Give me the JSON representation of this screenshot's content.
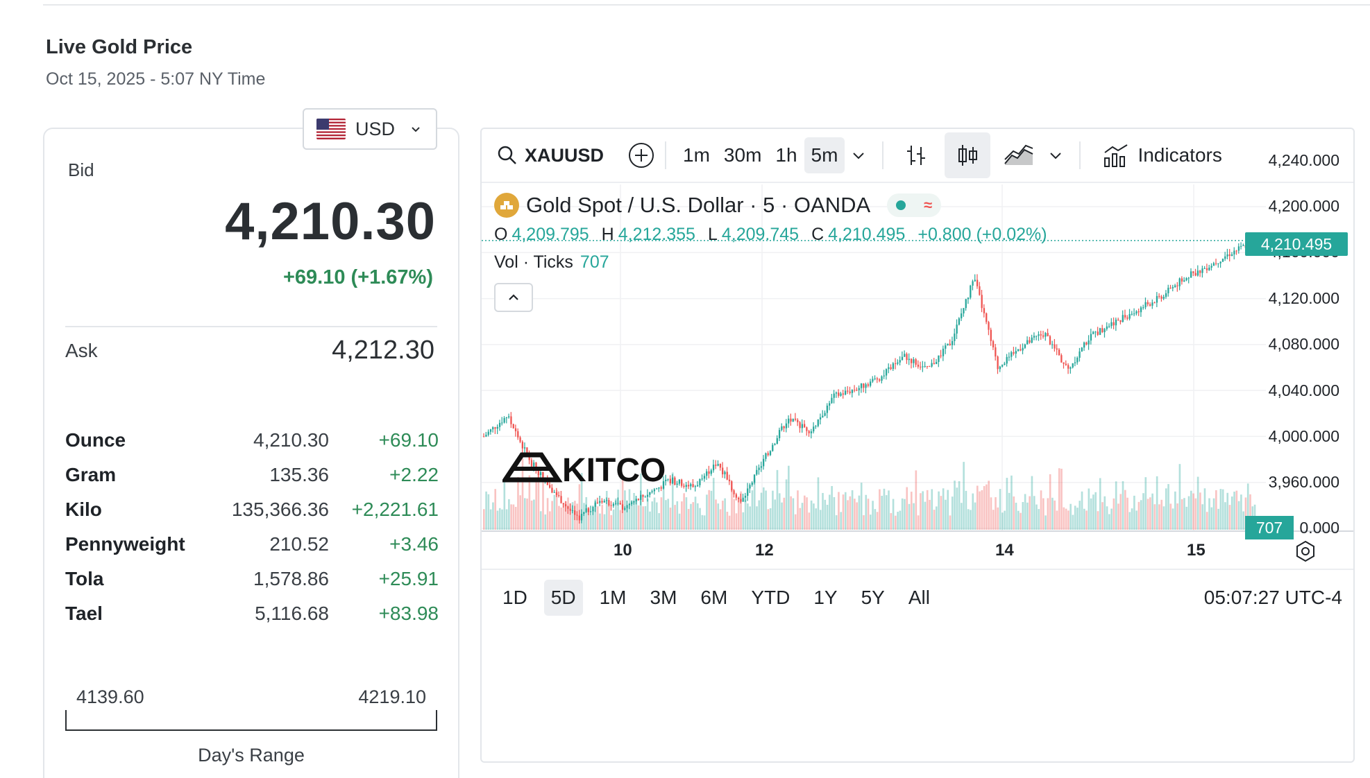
{
  "header": {
    "title": "Live Gold Price",
    "subtitle": "Oct 15, 2025 - 5:07 NY Time"
  },
  "currency": {
    "selected": "USD",
    "flag_icon": "us-flag-icon"
  },
  "quote": {
    "bid_label": "Bid",
    "bid": "4,210.30",
    "change": "+69.10 (+1.67%)",
    "ask_label": "Ask",
    "ask": "4,212.30",
    "up_color": "#2e8b57"
  },
  "units": [
    {
      "name": "Ounce",
      "value": "4,210.30",
      "change": "+69.10"
    },
    {
      "name": "Gram",
      "value": "135.36",
      "change": "+2.22"
    },
    {
      "name": "Kilo",
      "value": "135,366.36",
      "change": "+2,221.61"
    },
    {
      "name": "Pennyweight",
      "value": "210.52",
      "change": "+3.46"
    },
    {
      "name": "Tola",
      "value": "1,578.86",
      "change": "+25.91"
    },
    {
      "name": "Tael",
      "value": "5,116.68",
      "change": "+83.98"
    }
  ],
  "days_range": {
    "low": "4139.60",
    "high": "4219.10",
    "label": "Day's Range"
  },
  "chart": {
    "symbol": "XAUUSD",
    "intervals": [
      "1m",
      "30m",
      "1h",
      "5m"
    ],
    "active_interval": "5m",
    "indicators_label": "Indicators",
    "legend": {
      "title": "Gold Spot / U.S. Dollar · 5 · OANDA",
      "o_label": "O",
      "o": "4,209.795",
      "h_label": "H",
      "h": "4,212.355",
      "l_label": "L",
      "l": "4,209.745",
      "c_label": "C",
      "c": "4,210.495",
      "change": "+0.800 (+0.02%)",
      "vol_label": "Vol · Ticks",
      "vol": "707"
    },
    "price_tag": "4,210.495",
    "vol_tag": "707",
    "y_ticks": [
      "4,240.000",
      "4,200.000",
      "4,160.000",
      "4,120.000",
      "4,080.000",
      "4,040.000",
      "4,000.000",
      "3,960.000",
      "0.000"
    ],
    "x_ticks": [
      "10",
      "12",
      "14",
      "15"
    ],
    "ranges": [
      "1D",
      "5D",
      "1M",
      "3M",
      "6M",
      "YTD",
      "1Y",
      "5Y",
      "All"
    ],
    "active_range": "5D",
    "clock": "05:07:27 UTC-4",
    "watermark": "KITCO",
    "up_color": "#26a69a",
    "down_color": "#ef5350"
  },
  "chart_data": {
    "type": "line",
    "title": "Gold Spot / U.S. Dollar · 5 · OANDA",
    "xlabel": "",
    "ylabel": "",
    "x": [
      "9",
      "9",
      "9",
      "9",
      "9",
      "10",
      "10",
      "10",
      "11",
      "11",
      "11",
      "12",
      "12",
      "12",
      "12",
      "13",
      "13",
      "13",
      "13",
      "13",
      "13",
      "14",
      "14",
      "14",
      "14",
      "14",
      "14",
      "14",
      "14",
      "15",
      "15",
      "15",
      "15",
      "15"
    ],
    "series": [
      {
        "values": [
          4040,
          4058,
          4018,
          3992,
          3968,
          3985,
          3978,
          3990,
          4002,
          3996,
          4018,
          3982,
          4020,
          4055,
          4045,
          4075,
          4082,
          4092,
          4110,
          4098,
          4122,
          4178,
          4100,
          4118,
          4130,
          4098,
          4128,
          4140,
          4150,
          4162,
          4178,
          4188,
          4200,
          4210
        ]
      }
    ],
    "ylim": [
      3940,
      4250
    ],
    "x_tick_labels": [
      "10",
      "12",
      "14",
      "15"
    ],
    "y_tick_labels": [
      "4,240.000",
      "4,200.000",
      "4,160.000",
      "4,120.000",
      "4,080.000",
      "4,040.000",
      "4,000.000",
      "3,960.000"
    ],
    "last_value": 4210.495,
    "volume_last": 707,
    "grid": true
  }
}
